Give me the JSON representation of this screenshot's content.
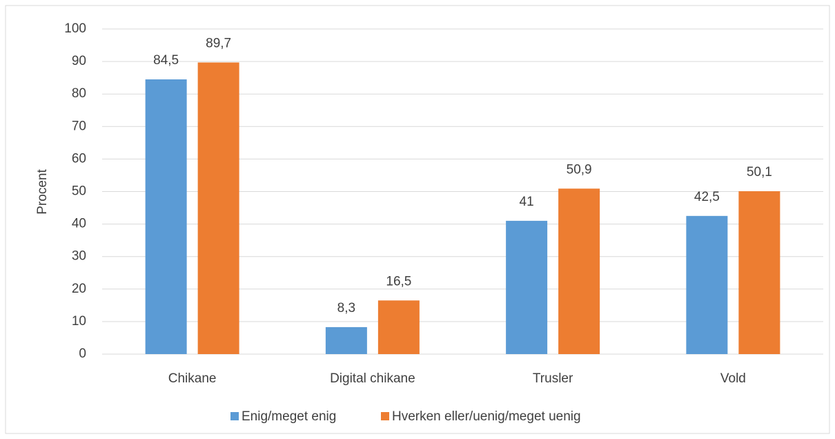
{
  "chart_data": {
    "type": "bar",
    "y_label": "Procent",
    "categories": [
      "Chikane",
      "Digital chikane",
      "Trusler",
      "Vold"
    ],
    "series": [
      {
        "name": "Enig/meget enig",
        "color": "#5b9bd5",
        "values": [
          84.5,
          8.3,
          41,
          42.5
        ],
        "value_labels": [
          "84,5",
          "8,3",
          "41",
          "42,5"
        ]
      },
      {
        "name": "Hverken eller/uenig/meget uenig",
        "color": "#ed7d31",
        "values": [
          89.7,
          16.5,
          50.9,
          50.1
        ],
        "value_labels": [
          "89,7",
          "16,5",
          "50,9",
          "50,1"
        ]
      }
    ],
    "ylim": [
      0,
      100
    ],
    "yticks": [
      0,
      10,
      20,
      30,
      40,
      50,
      60,
      70,
      80,
      90,
      100
    ],
    "grid": true,
    "legend": "bottom"
  }
}
